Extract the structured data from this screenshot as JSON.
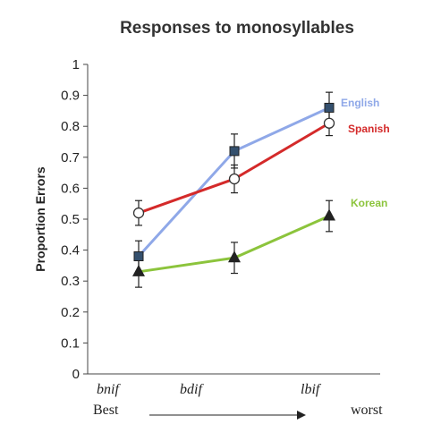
{
  "chart_data": {
    "type": "line",
    "title": "Responses to monosyllables",
    "ylabel": "Proportion Errors",
    "xlabel": "",
    "categories": [
      "bnif",
      "bdif",
      "lbif"
    ],
    "ylim": [
      0,
      1
    ],
    "yticks": [
      "0",
      "0.1",
      "0.2",
      "0.3",
      "0.4",
      "0.5",
      "0.6",
      "0.7",
      "0.8",
      "0.9",
      "1"
    ],
    "grid": false,
    "legend": "inline labels at line ends",
    "scale_left": "Best",
    "scale_right": "worst",
    "series": [
      {
        "name": "English",
        "color": "#8fa8e8",
        "marker": "square",
        "values": [
          0.38,
          0.72,
          0.86
        ],
        "errors": [
          0.05,
          0.055,
          0.05
        ]
      },
      {
        "name": "Spanish",
        "color": "#d42a2a",
        "marker": "open-circle",
        "values": [
          0.52,
          0.63,
          0.81
        ],
        "errors": [
          0.04,
          0.045,
          0.04
        ]
      },
      {
        "name": "Korean",
        "color": "#8cc43c",
        "marker": "triangle",
        "values": [
          0.33,
          0.375,
          0.51
        ],
        "errors": [
          0.05,
          0.05,
          0.05
        ]
      }
    ]
  }
}
